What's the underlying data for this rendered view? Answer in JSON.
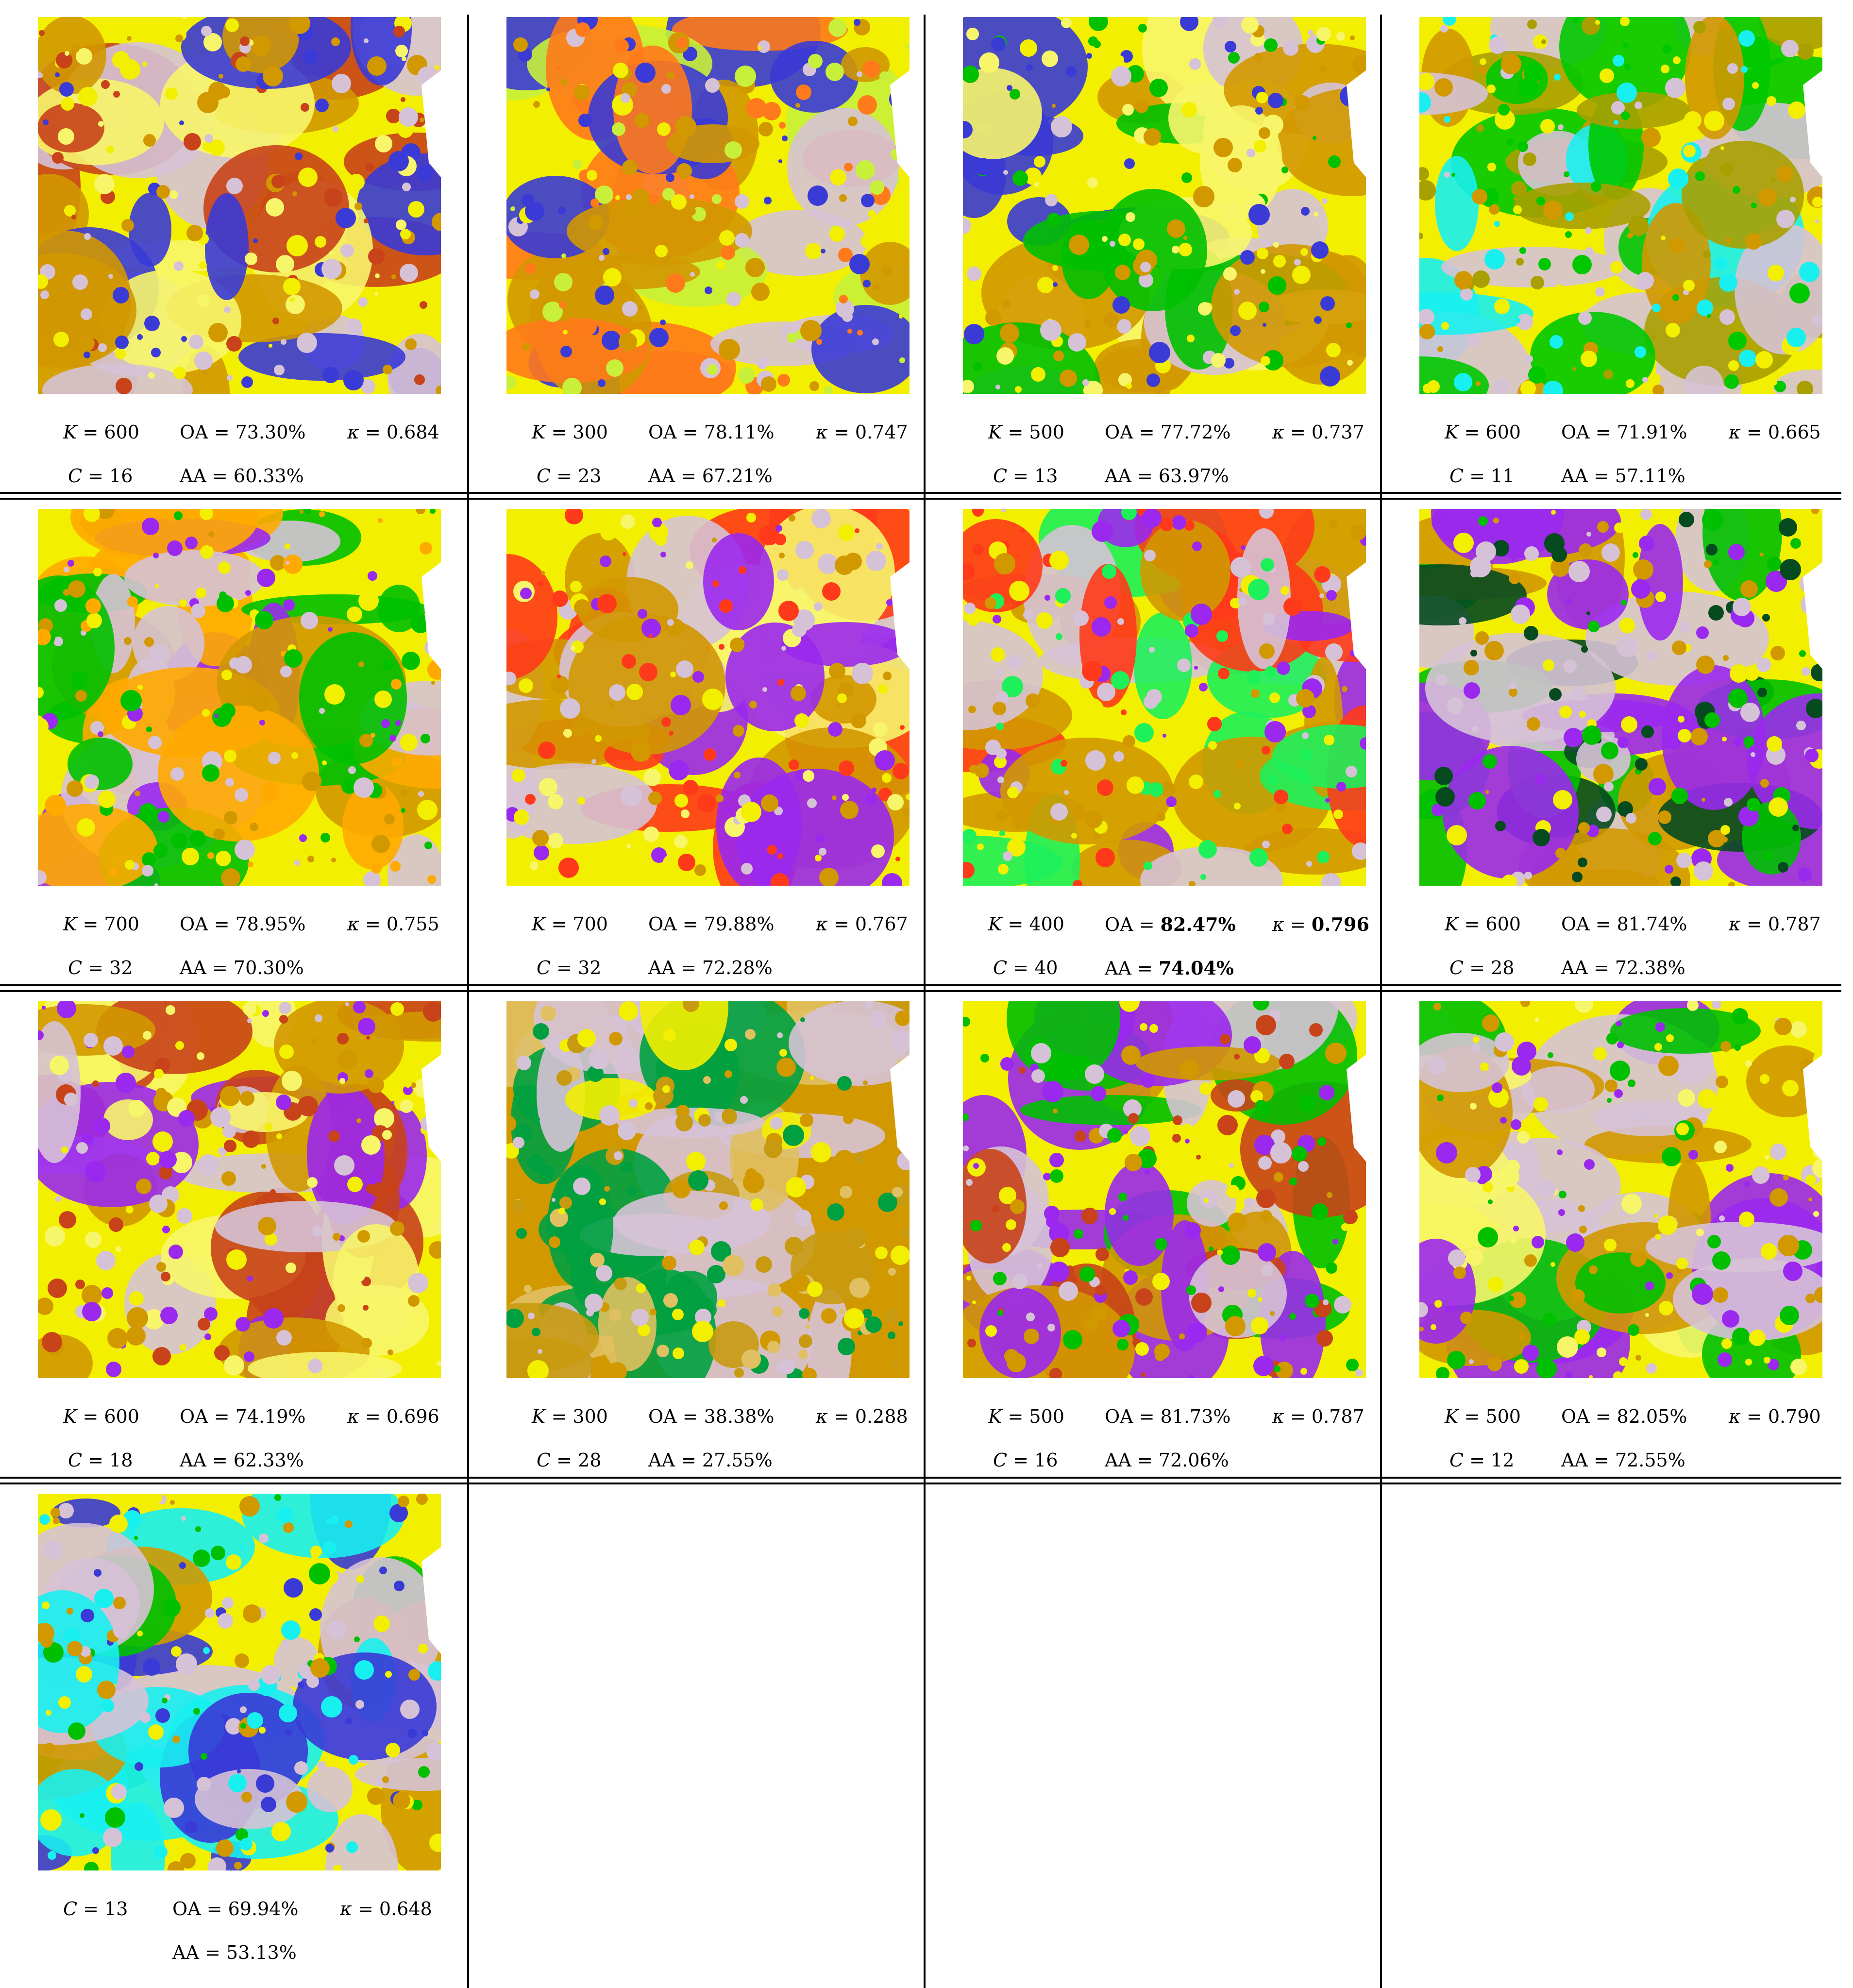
{
  "panels": [
    {
      "K": "600",
      "C": "16",
      "OA": "73.30%",
      "kappa": "0.684",
      "AA": "60.33%",
      "palette": [
        "#f3ef00",
        "#d19800",
        "#c8421a",
        "#3a3ad6",
        "#f7f56a",
        "#d6c2d6"
      ]
    },
    {
      "K": "300",
      "C": "23",
      "OA": "78.11%",
      "kappa": "0.747",
      "AA": "67.21%",
      "palette": [
        "#f3ef00",
        "#d6c2d6",
        "#3a3ad6",
        "#ff7a1a",
        "#c8f03a",
        "#d19800"
      ]
    },
    {
      "K": "500",
      "C": "13",
      "OA": "77.72%",
      "kappa": "0.737",
      "AA": "63.97%",
      "palette": [
        "#f3ef00",
        "#d6c2d6",
        "#3a3ad6",
        "#00c000",
        "#d19800",
        "#f7f56a"
      ]
    },
    {
      "K": "600",
      "C": "11",
      "OA": "71.91%",
      "kappa": "0.665",
      "AA": "57.11%",
      "palette": [
        "#f3ef00",
        "#d19800",
        "#00c800",
        "#18f0f0",
        "#d6c2d6",
        "#a9a000"
      ]
    },
    {
      "K": "700",
      "C": "32",
      "OA": "78.95%",
      "kappa": "0.755",
      "AA": "70.30%",
      "palette": [
        "#f3ef00",
        "#d6c2d6",
        "#9a28ee",
        "#ffaa00",
        "#00c000",
        "#d19800"
      ]
    },
    {
      "K": "700",
      "C": "32",
      "OA": "79.88%",
      "kappa": "0.767",
      "AA": "72.28%",
      "palette": [
        "#f3ef00",
        "#d6c2d6",
        "#9a28ee",
        "#ff3a1a",
        "#d19800",
        "#f7f56a"
      ]
    },
    {
      "K": "400",
      "C": "40",
      "OA": "82.47%",
      "kappa": "0.796",
      "AA": "74.04%",
      "bold": true,
      "palette": [
        "#f3ef00",
        "#9a28ee",
        "#1ef05a",
        "#d19800",
        "#ff3a1a",
        "#d6c2d6"
      ]
    },
    {
      "K": "600",
      "C": "28",
      "OA": "81.74%",
      "kappa": "0.787",
      "AA": "72.38%",
      "palette": [
        "#f3ef00",
        "#d6c2d6",
        "#9a28ee",
        "#00c000",
        "#d19800",
        "#064a20"
      ]
    },
    {
      "K": "600",
      "C": "18",
      "OA": "74.19%",
      "kappa": "0.696",
      "AA": "62.33%",
      "palette": [
        "#f3ef00",
        "#d6c2d6",
        "#d19800",
        "#9a28ee",
        "#c8421a",
        "#f7f56a"
      ]
    },
    {
      "K": "300",
      "C": "28",
      "OA": "38.38%",
      "kappa": "0.288",
      "AA": "27.55%",
      "palette": [
        "#d19800",
        "#c89a10",
        "#e0c060",
        "#f3ef00",
        "#00a040",
        "#d6c2d6"
      ]
    },
    {
      "K": "500",
      "C": "16",
      "OA": "81.73%",
      "kappa": "0.787",
      "AA": "72.06%",
      "palette": [
        "#f3ef00",
        "#d6c2d6",
        "#9a28ee",
        "#00c000",
        "#d19800",
        "#c8421a"
      ]
    },
    {
      "K": "500",
      "C": "12",
      "OA": "82.05%",
      "kappa": "0.790",
      "AA": "72.55%",
      "palette": [
        "#f3ef00",
        "#d6c2d6",
        "#9a28ee",
        "#00c000",
        "#d19800",
        "#f7f56a"
      ]
    },
    {
      "C": "13",
      "OA": "69.94%",
      "kappa": "0.648",
      "AA": "53.13%",
      "palette": [
        "#f3ef00",
        "#d6c2d6",
        "#3a3ad6",
        "#00c000",
        "#d19800",
        "#18f0f0"
      ]
    }
  ]
}
